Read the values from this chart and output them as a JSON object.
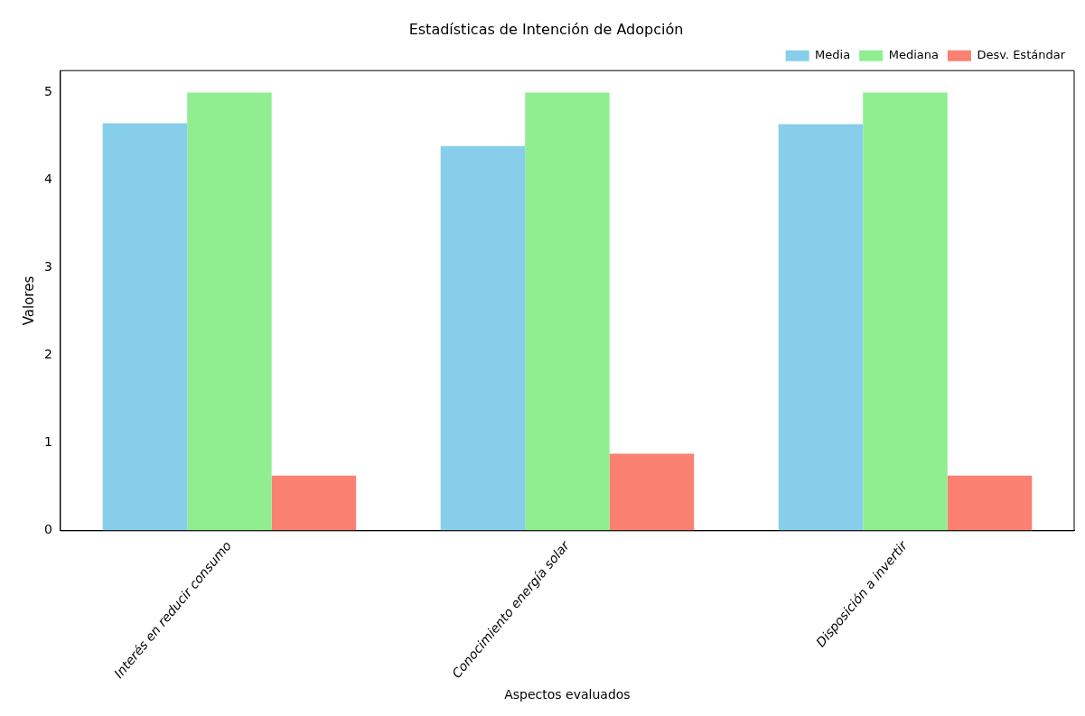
{
  "chart_data": {
    "type": "bar",
    "title": "Estadísticas de Intención de Adopción",
    "xlabel": "Aspectos evaluados",
    "ylabel": "Valores",
    "categories": [
      "Interés en reducir consumo",
      "Conocimiento energía solar",
      "Disposición a invertir"
    ],
    "series": [
      {
        "name": "Media",
        "color": "#87ceeb",
        "values": [
          4.65,
          4.39,
          4.64
        ]
      },
      {
        "name": "Mediana",
        "color": "#90ee90",
        "values": [
          5,
          5,
          5
        ]
      },
      {
        "name": "Desv. Estándar",
        "color": "#fa8072",
        "values": [
          0.63,
          0.88,
          0.63
        ]
      }
    ],
    "ylim": [
      0,
      5.25
    ],
    "yticks": [
      0,
      1,
      2,
      3,
      4,
      5
    ],
    "grid": false,
    "legend": "top right"
  }
}
